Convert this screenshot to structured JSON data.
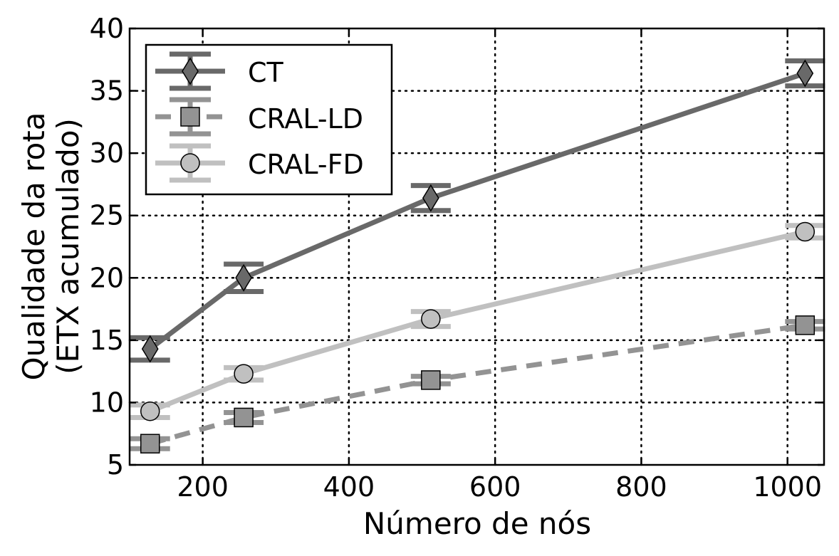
{
  "chart_data": {
    "type": "line",
    "title": "",
    "xlabel": "Número de nós",
    "ylabel_lines": [
      "Qualidade da rota",
      "(ETX acumulado)"
    ],
    "xlim": [
      100,
      1050
    ],
    "ylim": [
      5,
      40
    ],
    "xticks": [
      200,
      400,
      600,
      800,
      1000
    ],
    "yticks": [
      5,
      10,
      15,
      20,
      25,
      30,
      35,
      40
    ],
    "grid": true,
    "legend_position": "top-left",
    "series": [
      {
        "name": "CT",
        "color": "#696969",
        "line_style": "solid",
        "marker": "diamond",
        "x": [
          128,
          256,
          512,
          1024
        ],
        "y": [
          14.3,
          20.0,
          26.4,
          36.4
        ],
        "err": [
          0.9,
          1.1,
          1.0,
          1.0
        ]
      },
      {
        "name": "CRAL-LD",
        "color": "#939393",
        "line_style": "dashed",
        "marker": "square",
        "x": [
          128,
          256,
          512,
          1024
        ],
        "y": [
          6.7,
          8.8,
          11.8,
          16.2
        ],
        "err": [
          0.4,
          0.4,
          0.3,
          0.3
        ]
      },
      {
        "name": "CRAL-FD",
        "color": "#c0c0c0",
        "line_style": "solid",
        "marker": "circle",
        "x": [
          128,
          256,
          512,
          1024
        ],
        "y": [
          9.3,
          12.3,
          16.7,
          23.7
        ],
        "err": [
          0.5,
          0.5,
          0.6,
          0.5
        ]
      }
    ]
  }
}
